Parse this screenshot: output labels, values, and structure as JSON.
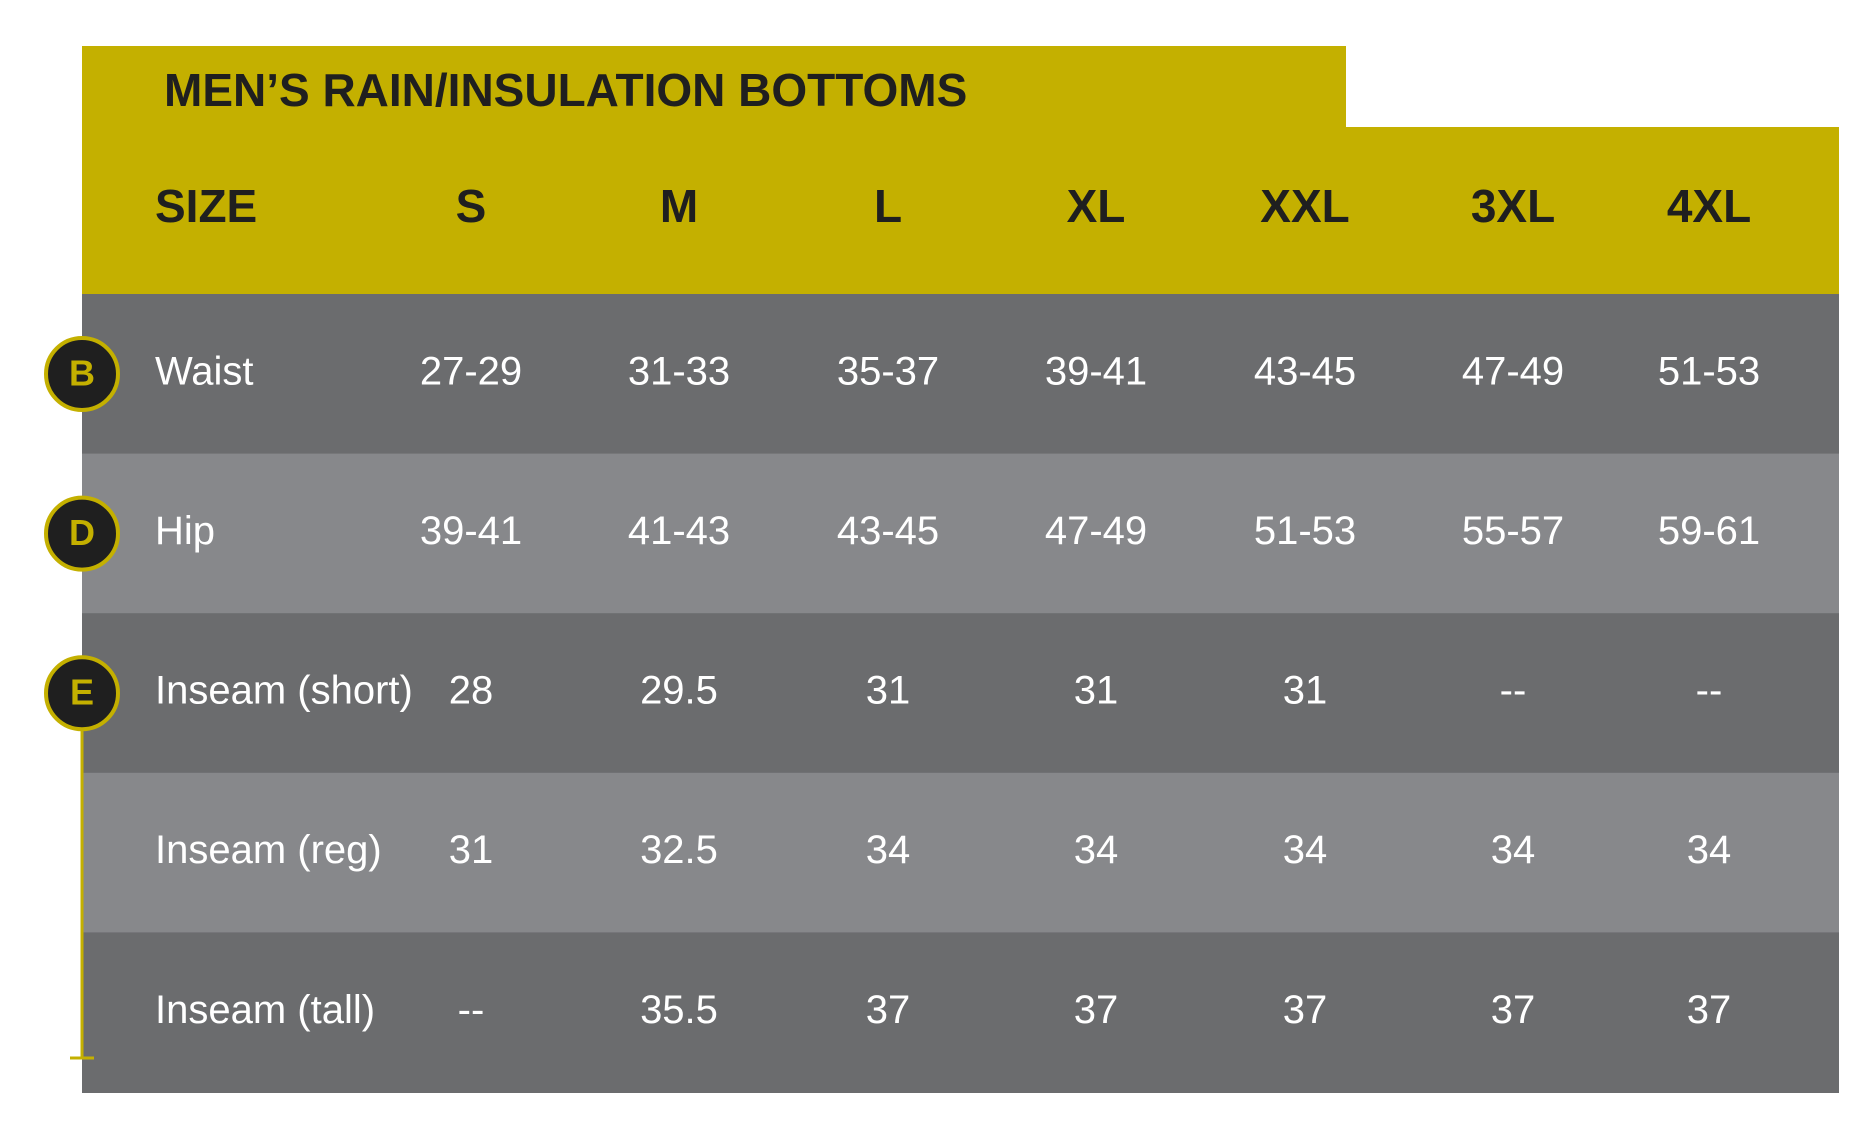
{
  "header": {
    "title": "MEN’S RAIN/INSULATION BOTTOMS"
  },
  "table": {
    "columns": [
      "SIZE",
      "S",
      "M",
      "L",
      "XL",
      "XXL",
      "3XL",
      "4XL"
    ],
    "rows": [
      {
        "marker": "B",
        "cells": [
          "Waist",
          "27-29",
          "31-33",
          "35-37",
          "39-41",
          "43-45",
          "47-49",
          "51-53"
        ]
      },
      {
        "marker": "D",
        "cells": [
          "Hip",
          "39-41",
          "41-43",
          "43-45",
          "47-49",
          "51-53",
          "55-57",
          "59-61"
        ]
      },
      {
        "marker": "E",
        "cells": [
          "Inseam (short)",
          "28",
          "29.5",
          "31",
          "31",
          "31",
          "--",
          "--"
        ]
      },
      {
        "cells": [
          "Inseam (reg)",
          "31",
          "32.5",
          "34",
          "34",
          "34",
          "34",
          "34"
        ]
      },
      {
        "cells": [
          "Inseam (tall)",
          "--",
          "35.5",
          "37",
          "37",
          "37",
          "37",
          "37"
        ]
      }
    ]
  }
}
